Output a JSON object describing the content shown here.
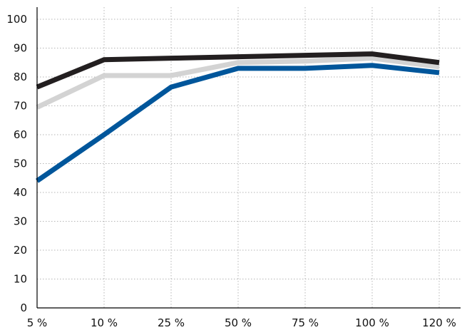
{
  "chart_data": {
    "type": "line",
    "title": "",
    "xlabel": "",
    "ylabel": "",
    "categories": [
      "5 %",
      "10 %",
      "25 %",
      "50 %",
      "75 %",
      "100 %",
      "120 %"
    ],
    "y_ticks": [
      "0",
      "10",
      "20",
      "30",
      "40",
      "50",
      "60",
      "70",
      "80",
      "90",
      "100"
    ],
    "ylim": [
      0,
      100
    ],
    "grid": true,
    "legend": "none",
    "series": [
      {
        "color": "#d3d3d3",
        "values": [
          69.5,
          80.5,
          80.5,
          85,
          85.5,
          86.5,
          83.5
        ]
      },
      {
        "color": "#231f20",
        "values": [
          76.5,
          86,
          86.5,
          87,
          87.5,
          88,
          85
        ]
      },
      {
        "color": "#00569b",
        "values": [
          44,
          60,
          76.5,
          83,
          83,
          84,
          81.5
        ]
      }
    ]
  }
}
